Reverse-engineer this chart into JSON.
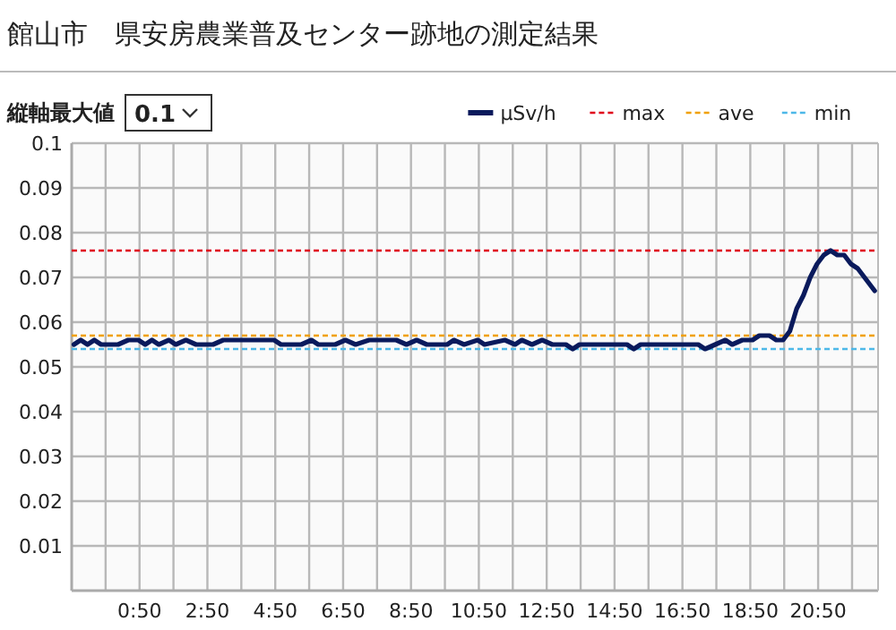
{
  "chart_data": {
    "type": "line",
    "title": "館山市　県安房農業普及センター跡地の測定結果",
    "annotations": [
      "縦軸最大値",
      "0.1"
    ],
    "x": [
      -1.1,
      -0.9,
      -0.7,
      -0.5,
      -0.3,
      0.2,
      0.5,
      0.8,
      1.0,
      1.2,
      1.4,
      1.7,
      1.9,
      2.2,
      2.5,
      3.0,
      3.3,
      4.8,
      5.0,
      5.6,
      5.9,
      6.1,
      6.6,
      6.9,
      7.2,
      7.6,
      8.4,
      8.7,
      9.0,
      9.3,
      9.9,
      10.1,
      10.4,
      10.8,
      11.0,
      11.6,
      11.9,
      12.1,
      12.4,
      12.7,
      13.0,
      13.4,
      13.6,
      13.8,
      15.2,
      15.4,
      15.6,
      17.3,
      17.5,
      17.8,
      18.1,
      18.3,
      18.6,
      18.9,
      19.1,
      19.4,
      19.6,
      19.8,
      20.0,
      20.2,
      20.4,
      20.6,
      20.8,
      21.0,
      21.2,
      21.4,
      21.6,
      21.8,
      22.0,
      22.2,
      22.4,
      22.5
    ],
    "series": [
      {
        "name": "μSv/h",
        "color": "#0a1a5c",
        "values": [
          0.055,
          0.056,
          0.055,
          0.056,
          0.055,
          0.055,
          0.056,
          0.056,
          0.055,
          0.056,
          0.055,
          0.056,
          0.055,
          0.056,
          0.055,
          0.055,
          0.056,
          0.056,
          0.055,
          0.055,
          0.056,
          0.055,
          0.055,
          0.056,
          0.055,
          0.056,
          0.056,
          0.055,
          0.056,
          0.055,
          0.055,
          0.056,
          0.055,
          0.056,
          0.055,
          0.056,
          0.055,
          0.056,
          0.055,
          0.056,
          0.055,
          0.055,
          0.054,
          0.055,
          0.055,
          0.054,
          0.055,
          0.055,
          0.054,
          0.055,
          0.056,
          0.055,
          0.056,
          0.056,
          0.057,
          0.057,
          0.056,
          0.056,
          0.058,
          0.063,
          0.066,
          0.07,
          0.073,
          0.075,
          0.076,
          0.075,
          0.075,
          0.073,
          0.072,
          0.07,
          0.068,
          0.067
        ]
      }
    ],
    "ref_lines": [
      {
        "axis": "y",
        "value": 0.076,
        "label": "max",
        "color": "#e0001b",
        "line_style": "dashed"
      },
      {
        "axis": "y",
        "value": 0.057,
        "label": "ave",
        "color": "#f0a000",
        "line_style": "dashed"
      },
      {
        "axis": "y",
        "value": 0.054,
        "label": "min",
        "color": "#4db8e8",
        "line_style": "dashed"
      }
    ],
    "xlim": [
      -1.1667,
      22.6
    ],
    "ylim": [
      0,
      0.1
    ],
    "xticks": [
      {
        "value": -0.1667,
        "label": null
      },
      {
        "value": 0.8333,
        "label": "0:50"
      },
      {
        "value": 1.8333,
        "label": null
      },
      {
        "value": 2.8333,
        "label": "2:50"
      },
      {
        "value": 3.8333,
        "label": null
      },
      {
        "value": 4.8333,
        "label": "4:50"
      },
      {
        "value": 5.8333,
        "label": null
      },
      {
        "value": 6.8333,
        "label": "6:50"
      },
      {
        "value": 7.8333,
        "label": null
      },
      {
        "value": 8.8333,
        "label": "8:50"
      },
      {
        "value": 9.8333,
        "label": null
      },
      {
        "value": 10.8333,
        "label": "10:50"
      },
      {
        "value": 11.8333,
        "label": null
      },
      {
        "value": 12.8333,
        "label": "12:50"
      },
      {
        "value": 13.8333,
        "label": null
      },
      {
        "value": 14.8333,
        "label": "14:50"
      },
      {
        "value": 15.8333,
        "label": null
      },
      {
        "value": 16.8333,
        "label": "16:50"
      },
      {
        "value": 17.8333,
        "label": null
      },
      {
        "value": 18.8333,
        "label": "18:50"
      },
      {
        "value": 19.8333,
        "label": null
      },
      {
        "value": 20.8333,
        "label": "20:50"
      },
      {
        "value": 21.8333,
        "label": null
      }
    ],
    "yticks": [
      0.01,
      0.02,
      0.03,
      0.04,
      0.05,
      0.06,
      0.07,
      0.08,
      0.09,
      0.1
    ],
    "grid": true,
    "legend": "top right",
    "marker": "none",
    "line_style": "solid"
  }
}
